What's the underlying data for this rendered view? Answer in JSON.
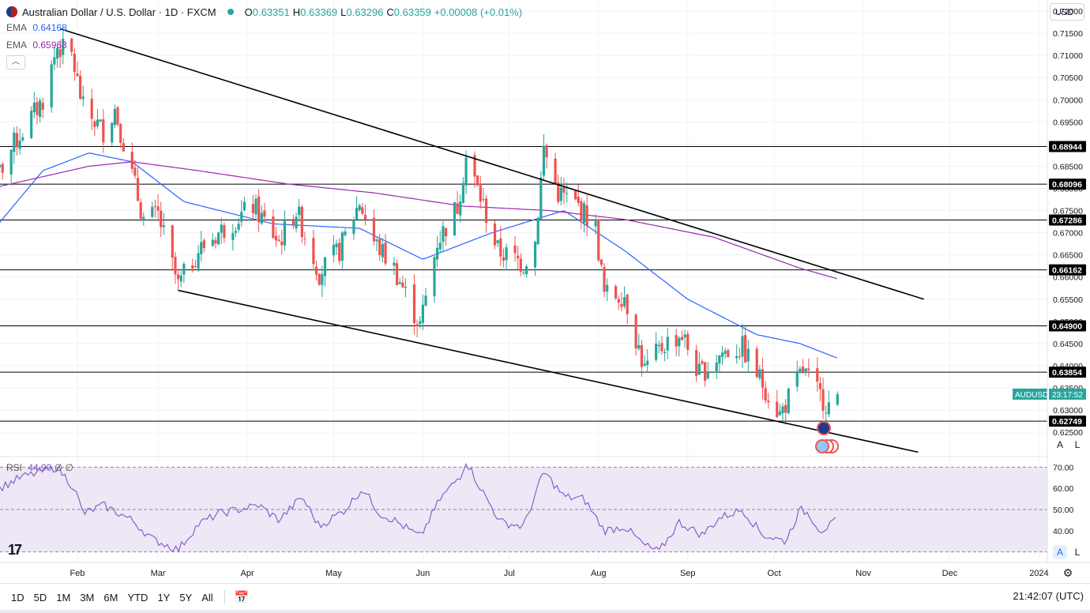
{
  "header": {
    "title": "Australian Dollar / U.S. Dollar · 1D · FXCM",
    "open_label": "O",
    "open": "0.63351",
    "high_label": "H",
    "high": "0.63369",
    "low_label": "L",
    "low": "0.63296",
    "close_label": "C",
    "close": "0.63359",
    "change": "+0.00008 (+0.01%)"
  },
  "indicators": {
    "ema1": {
      "label": "EMA",
      "value": "0.64168",
      "color": "#2962ff"
    },
    "ema2": {
      "label": "EMA",
      "value": "0.65963",
      "color": "#9c27b0"
    },
    "rsi": {
      "label": "RSI",
      "value": "44.90",
      "extra1": "∅",
      "extra2": "∅",
      "color": "#7e57c2"
    }
  },
  "currency_selector": "USD",
  "price_tag": {
    "symbol": "AUDUSD",
    "countdown": "23:17:52",
    "price": 0.63359
  },
  "axis_buttons": {
    "auto": "A",
    "log": "L"
  },
  "bottom": {
    "timeframes": [
      "1D",
      "5D",
      "1M",
      "3M",
      "6M",
      "YTD",
      "1Y",
      "5Y",
      "All"
    ],
    "clock": "21:42:07 (UTC)"
  },
  "colors": {
    "up": "#26a69a",
    "down": "#ef5350",
    "trend": "#000000",
    "level": "#000000",
    "rsi_band": "#ede7f6"
  },
  "chart_data": {
    "type": "candlestick",
    "title": "Australian Dollar / U.S. Dollar · 1D · FXCM",
    "x_months": [
      "Feb",
      "Mar",
      "Apr",
      "May",
      "Jun",
      "Jul",
      "Aug",
      "Sep",
      "Oct",
      "Nov",
      "Dec",
      "2024"
    ],
    "y_ticks": [
      "0.72000",
      "0.71500",
      "0.71000",
      "0.70500",
      "0.70000",
      "0.69500",
      "0.69000",
      "0.68500",
      "0.68000",
      "0.67500",
      "0.67000",
      "0.66500",
      "0.66000",
      "0.65500",
      "0.65000",
      "0.64500",
      "0.64000",
      "0.63500",
      "0.63000",
      "0.62500"
    ],
    "ylim": [
      0.6195,
      0.7225
    ],
    "horizontal_levels": [
      "0.68944",
      "0.68096",
      "0.67286",
      "0.66162",
      "0.64900",
      "0.63854",
      "0.62749"
    ],
    "trendlines": [
      {
        "from": [
          "2023-01-26",
          0.716
        ],
        "to": [
          "2023-11-22",
          0.655
        ]
      },
      {
        "from": [
          "2023-03-08",
          0.657
        ],
        "to": [
          "2023-11-20",
          0.6205
        ]
      }
    ],
    "close_anchors": [
      [
        "2023-01-02",
        0.68
      ],
      [
        "2023-01-10",
        0.69
      ],
      [
        "2023-01-20",
        0.7
      ],
      [
        "2023-01-25",
        0.712
      ],
      [
        "2023-01-30",
        0.71
      ],
      [
        "2023-02-03",
        0.698
      ],
      [
        "2023-02-10",
        0.693
      ],
      [
        "2023-02-14",
        0.698
      ],
      [
        "2023-02-24",
        0.673
      ],
      [
        "2023-03-01",
        0.674
      ],
      [
        "2023-03-08",
        0.658
      ],
      [
        "2023-03-15",
        0.666
      ],
      [
        "2023-03-22",
        0.67
      ],
      [
        "2023-04-03",
        0.676
      ],
      [
        "2023-04-12",
        0.668
      ],
      [
        "2023-04-18",
        0.675
      ],
      [
        "2023-04-26",
        0.661
      ],
      [
        "2023-05-03",
        0.666
      ],
      [
        "2023-05-10",
        0.677
      ],
      [
        "2023-05-15",
        0.668
      ],
      [
        "2023-05-22",
        0.662
      ],
      [
        "2023-05-31",
        0.649
      ],
      [
        "2023-06-06",
        0.668
      ],
      [
        "2023-06-13",
        0.676
      ],
      [
        "2023-06-16",
        0.687
      ],
      [
        "2023-06-21",
        0.678
      ],
      [
        "2023-06-27",
        0.666
      ],
      [
        "2023-07-06",
        0.663
      ],
      [
        "2023-07-10",
        0.668
      ],
      [
        "2023-07-13",
        0.689
      ],
      [
        "2023-07-18",
        0.679
      ],
      [
        "2023-07-25",
        0.676
      ],
      [
        "2023-07-31",
        0.671
      ],
      [
        "2023-08-03",
        0.656
      ],
      [
        "2023-08-10",
        0.656
      ],
      [
        "2023-08-17",
        0.639
      ],
      [
        "2023-08-24",
        0.645
      ],
      [
        "2023-08-30",
        0.647
      ],
      [
        "2023-09-05",
        0.638
      ],
      [
        "2023-09-13",
        0.643
      ],
      [
        "2023-09-20",
        0.644
      ],
      [
        "2023-09-27",
        0.636
      ],
      [
        "2023-10-03",
        0.629
      ],
      [
        "2023-10-11",
        0.639
      ],
      [
        "2023-10-16",
        0.634
      ],
      [
        "2023-10-20",
        0.631
      ],
      [
        "2023-10-23",
        0.6336
      ]
    ],
    "ema_fast_anchors": [
      [
        "2023-01-02",
        0.67
      ],
      [
        "2023-01-20",
        0.684
      ],
      [
        "2023-02-05",
        0.688
      ],
      [
        "2023-02-20",
        0.686
      ],
      [
        "2023-03-10",
        0.677
      ],
      [
        "2023-04-10",
        0.672
      ],
      [
        "2023-05-10",
        0.671
      ],
      [
        "2023-06-01",
        0.664
      ],
      [
        "2023-06-25",
        0.67
      ],
      [
        "2023-07-20",
        0.675
      ],
      [
        "2023-08-10",
        0.666
      ],
      [
        "2023-09-01",
        0.655
      ],
      [
        "2023-09-25",
        0.647
      ],
      [
        "2023-10-10",
        0.645
      ],
      [
        "2023-10-23",
        0.6417
      ]
    ],
    "ema_slow_anchors": [
      [
        "2023-01-02",
        0.68
      ],
      [
        "2023-02-05",
        0.685
      ],
      [
        "2023-02-20",
        0.686
      ],
      [
        "2023-03-15",
        0.684
      ],
      [
        "2023-04-15",
        0.681
      ],
      [
        "2023-05-15",
        0.679
      ],
      [
        "2023-06-15",
        0.676
      ],
      [
        "2023-07-15",
        0.675
      ],
      [
        "2023-08-10",
        0.673
      ],
      [
        "2023-09-10",
        0.669
      ],
      [
        "2023-10-10",
        0.662
      ],
      [
        "2023-10-23",
        0.6596
      ]
    ],
    "rsi": {
      "ylim": [
        25,
        75
      ],
      "y_ticks": [
        "70.00",
        "60.00",
        "50.00",
        "40.00"
      ],
      "levels": [
        70,
        50,
        30
      ],
      "anchors": [
        [
          "2023-01-02",
          58
        ],
        [
          "2023-01-12",
          65
        ],
        [
          "2023-01-25",
          70
        ],
        [
          "2023-01-31",
          60
        ],
        [
          "2023-02-03",
          48
        ],
        [
          "2023-02-10",
          52
        ],
        [
          "2023-02-20",
          45
        ],
        [
          "2023-02-27",
          36
        ],
        [
          "2023-03-08",
          31
        ],
        [
          "2023-03-15",
          43
        ],
        [
          "2023-03-22",
          48
        ],
        [
          "2023-04-05",
          52
        ],
        [
          "2023-04-12",
          45
        ],
        [
          "2023-04-20",
          56
        ],
        [
          "2023-04-26",
          42
        ],
        [
          "2023-05-05",
          50
        ],
        [
          "2023-05-11",
          60
        ],
        [
          "2023-05-17",
          48
        ],
        [
          "2023-05-22",
          45
        ],
        [
          "2023-05-31",
          37
        ],
        [
          "2023-06-07",
          55
        ],
        [
          "2023-06-14",
          66
        ],
        [
          "2023-06-16",
          73
        ],
        [
          "2023-06-21",
          60
        ],
        [
          "2023-06-28",
          44
        ],
        [
          "2023-07-06",
          42
        ],
        [
          "2023-07-13",
          68
        ],
        [
          "2023-07-20",
          56
        ],
        [
          "2023-07-27",
          55
        ],
        [
          "2023-08-03",
          40
        ],
        [
          "2023-08-10",
          42
        ],
        [
          "2023-08-17",
          33
        ],
        [
          "2023-08-22",
          30
        ],
        [
          "2023-08-29",
          44
        ],
        [
          "2023-09-06",
          38
        ],
        [
          "2023-09-12",
          46
        ],
        [
          "2023-09-20",
          50
        ],
        [
          "2023-09-27",
          38
        ],
        [
          "2023-10-05",
          35
        ],
        [
          "2023-10-10",
          50
        ],
        [
          "2023-10-13",
          48
        ],
        [
          "2023-10-17",
          40
        ],
        [
          "2023-10-20",
          42
        ],
        [
          "2023-10-23",
          44.9
        ]
      ]
    }
  }
}
